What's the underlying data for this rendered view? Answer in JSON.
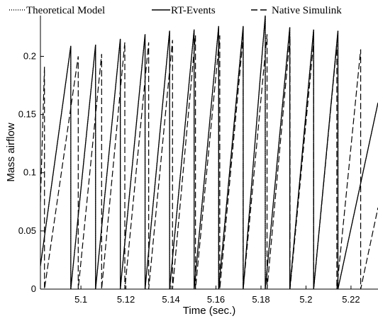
{
  "chart_data": {
    "type": "line",
    "xlabel": "Time (sec.)",
    "ylabel": "Mass airflow",
    "xlim": [
      5.082,
      5.232
    ],
    "ylim": [
      0,
      0.235
    ],
    "x_ticks": [
      5.1,
      5.12,
      5.14,
      5.16,
      5.18,
      5.2,
      5.22
    ],
    "x_tick_labels": [
      "5.1",
      "5.12",
      "5.14",
      "5.16",
      "5.18",
      "5.2",
      "5.22"
    ],
    "y_ticks": [
      0,
      0.05,
      0.1,
      0.15,
      0.2
    ],
    "y_tick_labels": [
      "0",
      "0.05",
      "0.1",
      "0.15",
      "0.2"
    ],
    "grid": false,
    "legend": {
      "placement": "top",
      "entries": [
        "Theoretical Model",
        "RT-Events",
        "Native Simulink"
      ]
    },
    "series": [
      {
        "name": "Theoretical Model",
        "style": "dotted",
        "color": "#000000",
        "sawtooth": {
          "start_value": 0.02,
          "rise_per_sec": 9.0,
          "drops_x": [
            5.0955,
            5.1065,
            5.1175,
            5.1285,
            5.1394,
            5.1503,
            5.1612,
            5.1721,
            5.1819,
            5.1928,
            5.2034,
            5.2142
          ],
          "peaks": [
            0.209,
            0.21,
            0.215,
            0.219,
            0.222,
            0.223,
            0.226,
            0.226,
            0.235,
            0.225,
            0.223,
            0.222
          ]
        }
      },
      {
        "name": "RT-Events",
        "style": "solid",
        "color": "#000000",
        "sawtooth": {
          "start_value": 0.02,
          "rise_per_sec": 9.0,
          "drops_x": [
            5.0955,
            5.1065,
            5.1175,
            5.1285,
            5.1394,
            5.1503,
            5.1612,
            5.1721,
            5.1819,
            5.1928,
            5.2034,
            5.2142
          ],
          "peaks": [
            0.209,
            0.21,
            0.215,
            0.219,
            0.222,
            0.223,
            0.226,
            0.226,
            0.235,
            0.225,
            0.223,
            0.222
          ]
        }
      },
      {
        "name": "Native Simulink",
        "style": "dashed",
        "color": "#000000",
        "sawtooth": {
          "start_value": 0.075,
          "rise_per_sec": 7.0,
          "drops_x": [
            5.0838,
            5.0988,
            5.1092,
            5.1195,
            5.1301,
            5.1407,
            5.1509,
            5.1617,
            5.1721,
            5.1827,
            5.1929,
            5.2034,
            5.2137,
            5.2243
          ],
          "peaks": [
            0.191,
            0.2,
            0.202,
            0.212,
            0.212,
            0.214,
            0.218,
            0.218,
            0.217,
            0.219,
            0.217,
            0.212,
            0.21,
            0.206
          ],
          "end_value": 0.07
        }
      }
    ]
  }
}
